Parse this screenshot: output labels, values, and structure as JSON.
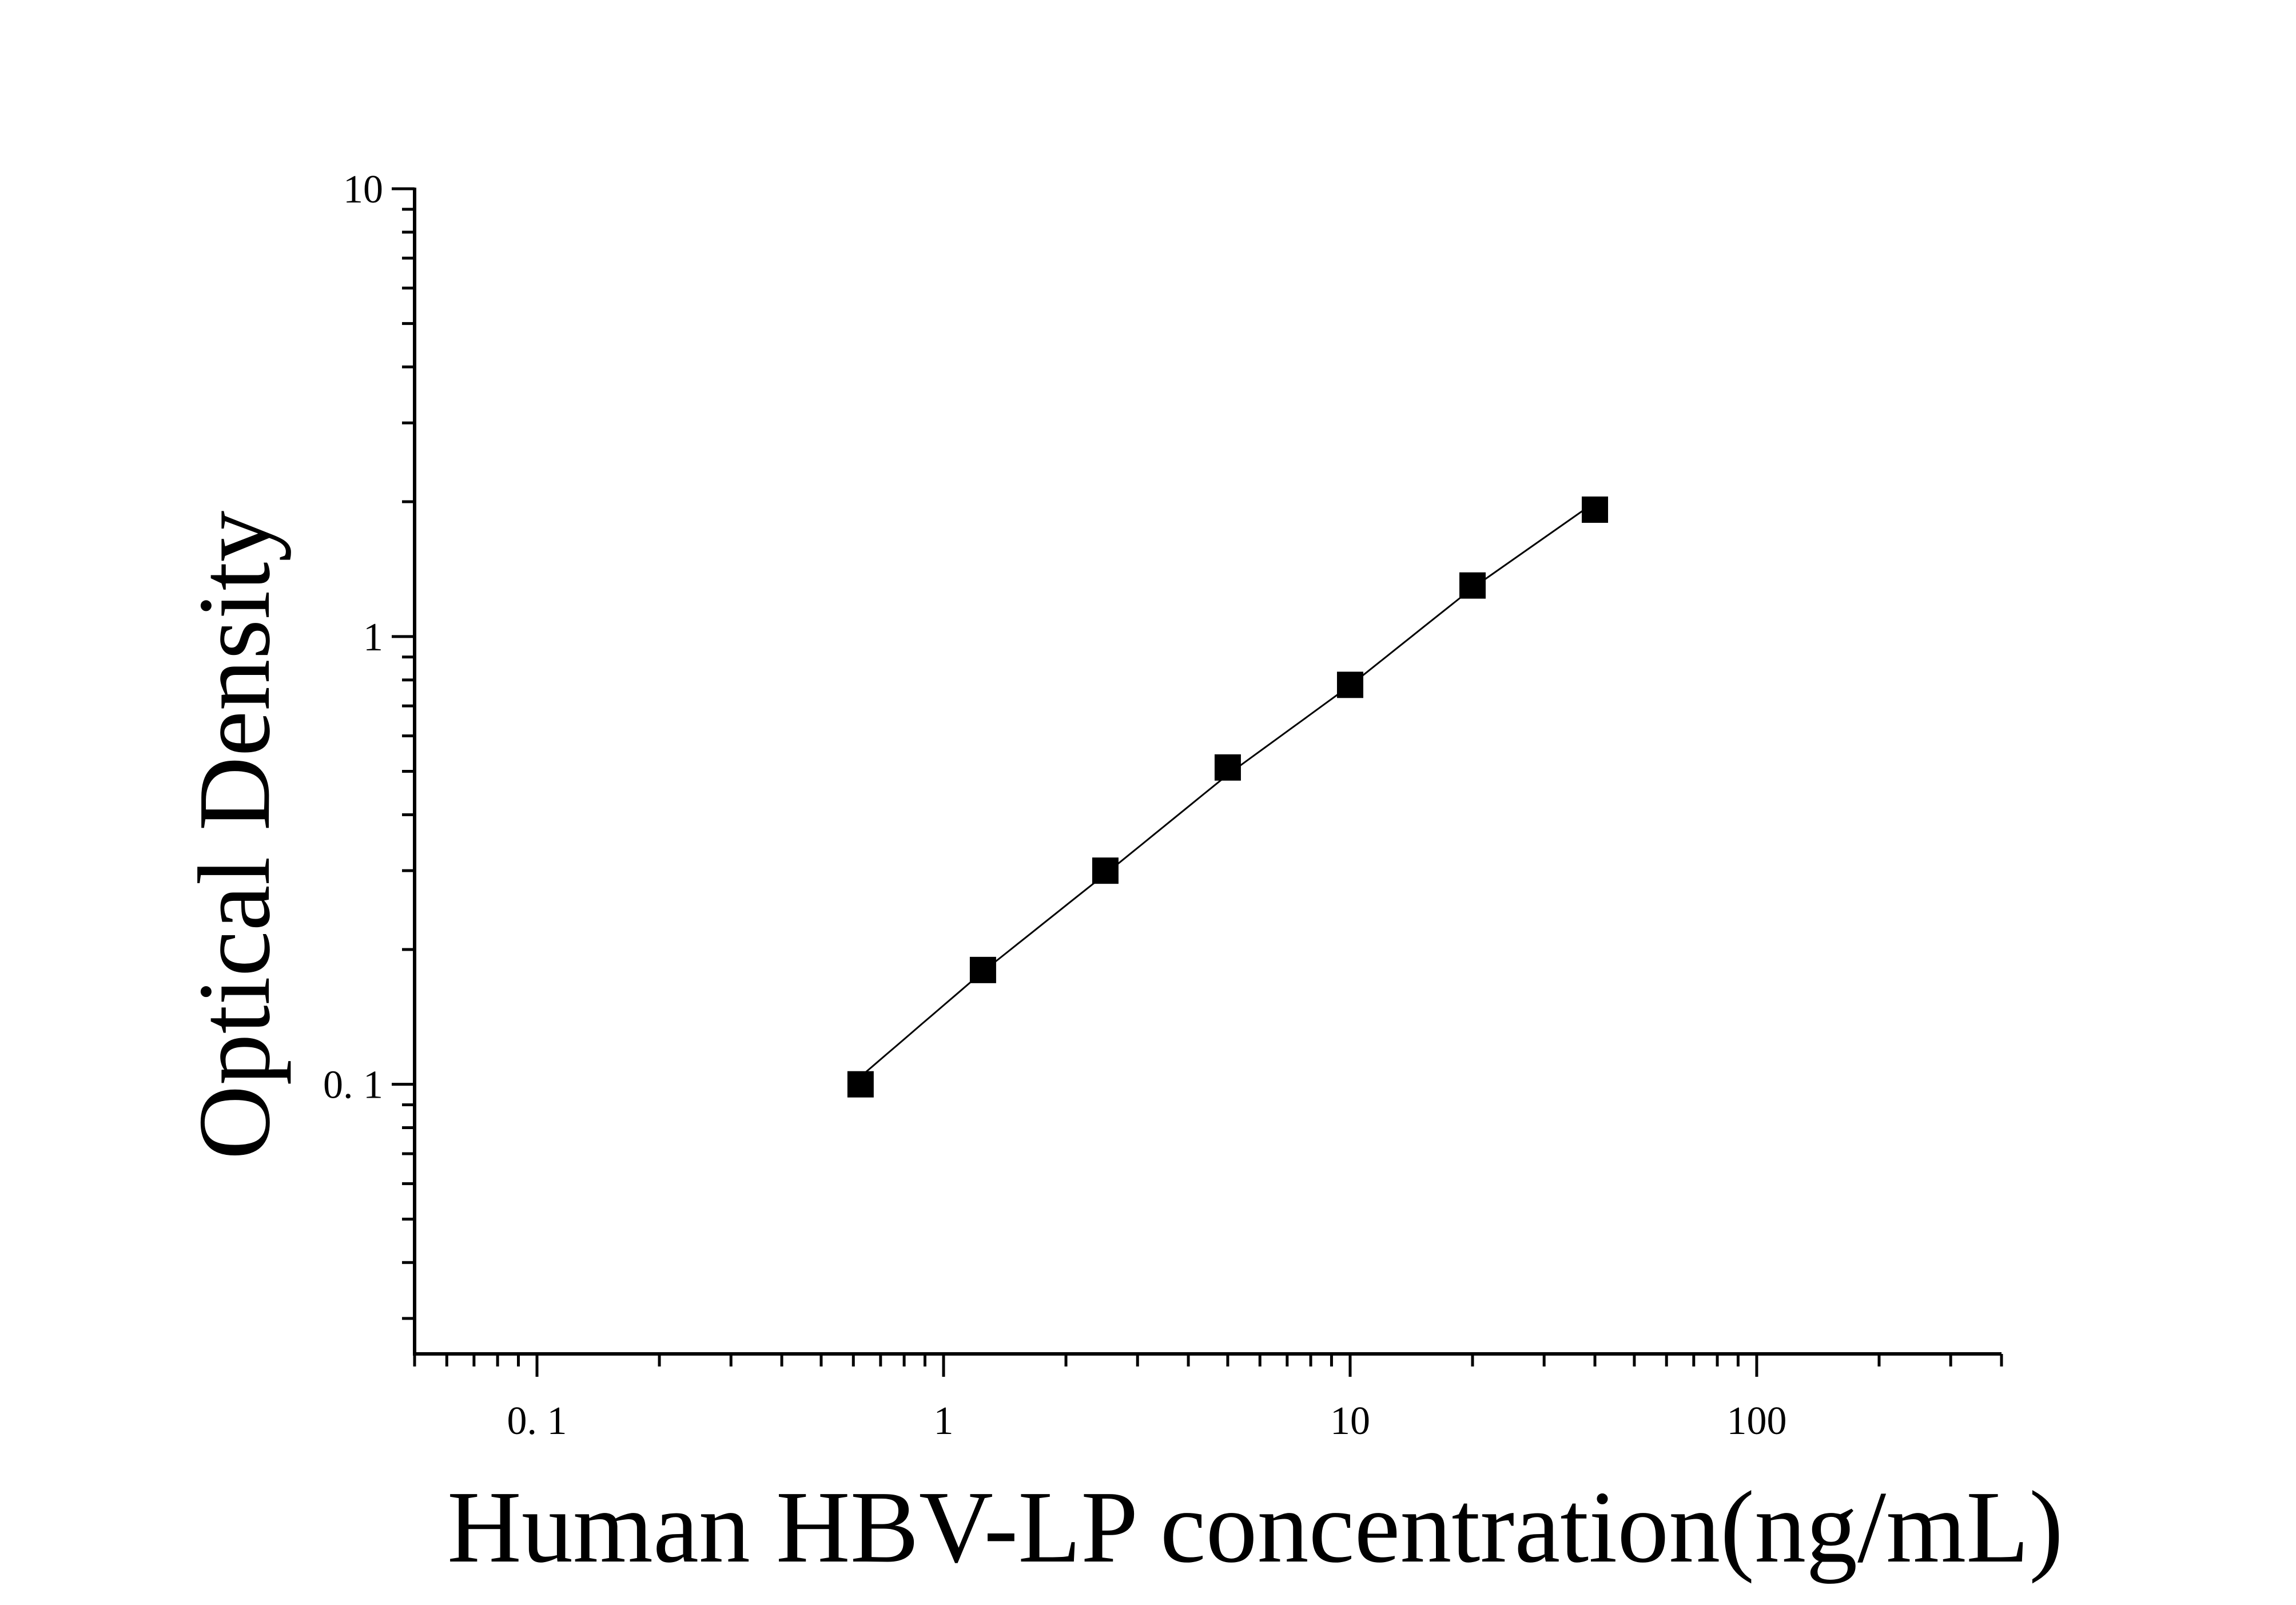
{
  "chart_data": {
    "type": "scatter",
    "title": "",
    "xlabel": "Human HBV-LP concentration(ng/mL)",
    "ylabel": "Optical Density",
    "x_scale": "log",
    "y_scale": "log",
    "xlim": [
      0.05,
      400
    ],
    "ylim": [
      0.025,
      10
    ],
    "x_tick_labels": [
      {
        "value": 0.1,
        "label": "0. 1"
      },
      {
        "value": 1,
        "label": "1"
      },
      {
        "value": 10,
        "label": "10"
      },
      {
        "value": 100,
        "label": "100"
      }
    ],
    "y_tick_labels": [
      {
        "value": 0.1,
        "label": "0. 1"
      },
      {
        "value": 1,
        "label": "1"
      },
      {
        "value": 10,
        "label": "10"
      }
    ],
    "grid": false,
    "legend": "none",
    "series": [
      {
        "marker": "square",
        "fit_line": true,
        "color": "#000000",
        "x": [
          0.625,
          1.25,
          2.5,
          5,
          10,
          20,
          40
        ],
        "y": [
          0.1,
          0.18,
          0.3,
          0.51,
          0.78,
          1.3,
          1.92
        ]
      }
    ]
  }
}
